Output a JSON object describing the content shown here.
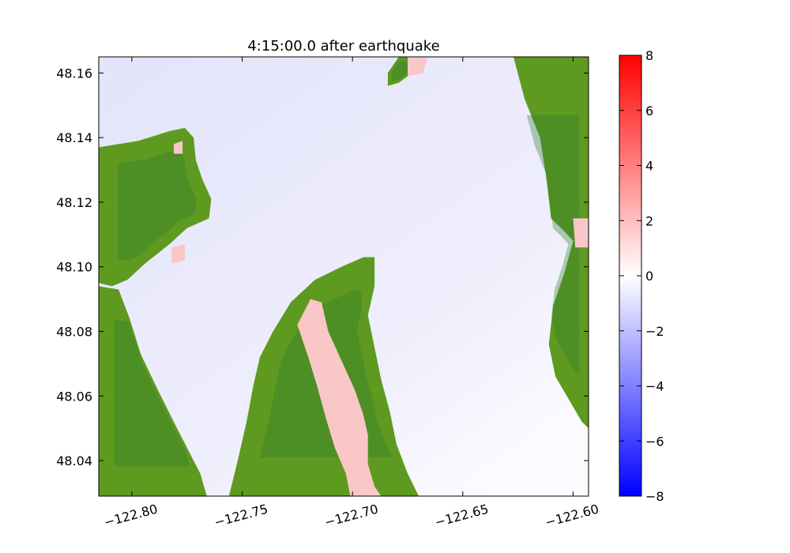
{
  "chart_data": {
    "type": "heatmap",
    "title": "4:15:00.0 after earthquake",
    "xlabel": "",
    "ylabel": "",
    "xlim": [
      -122.815,
      -122.593
    ],
    "ylim": [
      48.029,
      48.165
    ],
    "xticks": [
      -122.8,
      -122.75,
      -122.7,
      -122.65,
      -122.6
    ],
    "xtick_labels": [
      "−122.80",
      "−122.75",
      "−122.70",
      "−122.65",
      "−122.60"
    ],
    "yticks": [
      48.04,
      48.06,
      48.08,
      48.1,
      48.12,
      48.14,
      48.16
    ],
    "ytick_labels": [
      "48.04",
      "48.06",
      "48.08",
      "48.10",
      "48.12",
      "48.14",
      "48.16"
    ],
    "colorbar": {
      "range": [
        -8,
        8
      ],
      "colormap": "bwr",
      "ticks": [
        -8,
        -6,
        -4,
        -2,
        0,
        2,
        4,
        6,
        8
      ],
      "tick_labels": [
        "−8",
        "−6",
        "−4",
        "−2",
        "0",
        "2",
        "4",
        "6",
        "8"
      ]
    },
    "land_color": "#5e9a1f",
    "land_dark_color": "#2f7a2e",
    "water_color": "#e6e6fb",
    "positive_color": "#f9c7c7",
    "regions": [
      {
        "kind": "land",
        "name": "west-shore-north",
        "polygon": [
          [
            -122.815,
            48.137
          ],
          [
            -122.797,
            48.139
          ],
          [
            -122.783,
            48.142
          ],
          [
            -122.776,
            48.143
          ],
          [
            -122.772,
            48.14
          ],
          [
            -122.771,
            48.133
          ],
          [
            -122.768,
            48.127
          ],
          [
            -122.764,
            48.121
          ],
          [
            -122.765,
            48.115
          ],
          [
            -122.775,
            48.112
          ],
          [
            -122.783,
            48.107
          ],
          [
            -122.794,
            48.101
          ],
          [
            -122.802,
            48.096
          ],
          [
            -122.809,
            48.094
          ],
          [
            -122.815,
            48.095
          ]
        ]
      },
      {
        "kind": "land",
        "name": "west-shore-south",
        "polygon": [
          [
            -122.815,
            48.094
          ],
          [
            -122.806,
            48.093
          ],
          [
            -122.801,
            48.084
          ],
          [
            -122.796,
            48.073
          ],
          [
            -122.789,
            48.063
          ],
          [
            -122.781,
            48.052
          ],
          [
            -122.775,
            48.044
          ],
          [
            -122.769,
            48.036
          ],
          [
            -122.766,
            48.029
          ],
          [
            -122.815,
            48.029
          ]
        ]
      },
      {
        "kind": "land",
        "name": "central-peninsula",
        "polygon": [
          [
            -122.736,
            48.08
          ],
          [
            -122.728,
            48.089
          ],
          [
            -122.717,
            48.096
          ],
          [
            -122.705,
            48.1
          ],
          [
            -122.695,
            48.103
          ],
          [
            -122.69,
            48.103
          ],
          [
            -122.69,
            48.094
          ],
          [
            -122.693,
            48.085
          ],
          [
            -122.69,
            48.075
          ],
          [
            -122.687,
            48.065
          ],
          [
            -122.683,
            48.055
          ],
          [
            -122.68,
            48.045
          ],
          [
            -122.675,
            48.036
          ],
          [
            -122.67,
            48.029
          ],
          [
            -122.756,
            48.029
          ],
          [
            -122.752,
            48.04
          ],
          [
            -122.748,
            48.052
          ],
          [
            -122.745,
            48.063
          ],
          [
            -122.742,
            48.072
          ]
        ]
      },
      {
        "kind": "land",
        "name": "east-shore",
        "polygon": [
          [
            -122.593,
            48.165
          ],
          [
            -122.627,
            48.165
          ],
          [
            -122.622,
            48.152
          ],
          [
            -122.615,
            48.14
          ],
          [
            -122.612,
            48.127
          ],
          [
            -122.61,
            48.115
          ],
          [
            -122.604,
            48.111
          ],
          [
            -122.6,
            48.108
          ],
          [
            -122.604,
            48.098
          ],
          [
            -122.609,
            48.088
          ],
          [
            -122.611,
            48.076
          ],
          [
            -122.608,
            48.066
          ],
          [
            -122.602,
            48.059
          ],
          [
            -122.596,
            48.052
          ],
          [
            -122.593,
            48.05
          ]
        ]
      },
      {
        "kind": "land",
        "name": "north-point",
        "polygon": [
          [
            -122.679,
            48.165
          ],
          [
            -122.67,
            48.165
          ],
          [
            -122.673,
            48.16
          ],
          [
            -122.679,
            48.157
          ],
          [
            -122.684,
            48.156
          ],
          [
            -122.684,
            48.16
          ]
        ]
      },
      {
        "kind": "positive",
        "name": "central-inlet",
        "polygon": [
          [
            -122.725,
            48.082
          ],
          [
            -122.719,
            48.09
          ],
          [
            -122.714,
            48.089
          ],
          [
            -122.711,
            48.08
          ],
          [
            -122.705,
            48.071
          ],
          [
            -122.699,
            48.062
          ],
          [
            -122.695,
            48.054
          ],
          [
            -122.693,
            48.048
          ],
          [
            -122.693,
            48.039
          ],
          [
            -122.69,
            48.032
          ],
          [
            -122.687,
            48.029
          ],
          [
            -122.701,
            48.029
          ],
          [
            -122.703,
            48.036
          ],
          [
            -122.708,
            48.044
          ],
          [
            -122.712,
            48.053
          ],
          [
            -122.716,
            48.063
          ],
          [
            -122.72,
            48.072
          ]
        ]
      },
      {
        "kind": "positive",
        "name": "north-strip",
        "polygon": [
          [
            -122.675,
            48.165
          ],
          [
            -122.666,
            48.165
          ],
          [
            -122.668,
            48.16
          ],
          [
            -122.675,
            48.159
          ]
        ]
      },
      {
        "kind": "positive",
        "name": "west-spot-north",
        "polygon": [
          [
            -122.781,
            48.138
          ],
          [
            -122.777,
            48.139
          ],
          [
            -122.777,
            48.135
          ],
          [
            -122.781,
            48.135
          ]
        ]
      },
      {
        "kind": "positive",
        "name": "west-spot-mid",
        "polygon": [
          [
            -122.782,
            48.106
          ],
          [
            -122.776,
            48.107
          ],
          [
            -122.776,
            48.102
          ],
          [
            -122.782,
            48.101
          ]
        ]
      },
      {
        "kind": "positive",
        "name": "east-spot",
        "polygon": [
          [
            -122.6,
            48.115
          ],
          [
            -122.593,
            48.115
          ],
          [
            -122.593,
            48.106
          ],
          [
            -122.599,
            48.106
          ]
        ]
      }
    ]
  }
}
